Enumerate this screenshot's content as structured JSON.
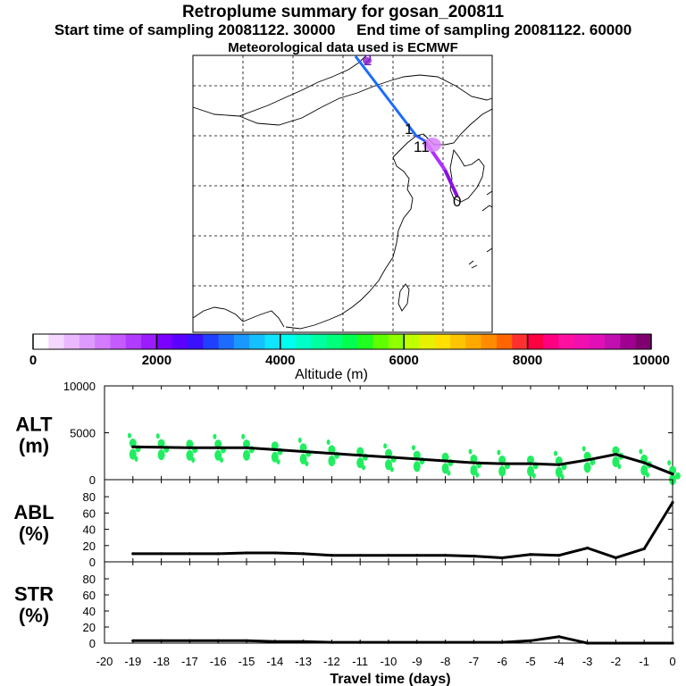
{
  "header": {
    "title": "Retroplume summary for gosan_200811",
    "start_label": "Start time of sampling 20081122. 30000",
    "end_label": "End time of sampling 20081122. 60000",
    "met_label": "Meteorological data used is ECMWF"
  },
  "colorbar": {
    "label": "Altitude (m)",
    "ticks": [
      "0",
      "2000",
      "4000",
      "6000",
      "8000",
      "10000"
    ],
    "range": [
      0,
      10000
    ],
    "colors": [
      "#ffffff",
      "#f4d6ff",
      "#eab8ff",
      "#df9aff",
      "#d37bff",
      "#c45bff",
      "#b13cff",
      "#9a1cff",
      "#7a00ff",
      "#5b00ff",
      "#3b10ff",
      "#2040ff",
      "#1e6cff",
      "#1a98ff",
      "#16c0ff",
      "#10e4ff",
      "#00ffee",
      "#00ffc8",
      "#00ffa0",
      "#00ff7a",
      "#00ff50",
      "#20ff20",
      "#60ff00",
      "#90ff00",
      "#c0ff00",
      "#e6f000",
      "#ffe000",
      "#ffc400",
      "#ffa800",
      "#ff8c00",
      "#ff6600",
      "#ff3030",
      "#ff0040",
      "#ff0080",
      "#ff10a0",
      "#f010b0",
      "#e010b8",
      "#c010b0",
      "#a00090",
      "#800070"
    ]
  },
  "map": {
    "labels": [
      {
        "text": "2",
        "color": "#7a1fd0"
      },
      {
        "text": "1",
        "color": "#000000"
      },
      {
        "text": "11",
        "color": "#000000"
      },
      {
        "text": "0",
        "color": "#000000"
      }
    ]
  },
  "chart_data": [
    {
      "type": "line",
      "name": "ALT",
      "ylabel": "ALT\n(m)",
      "ylabel_top": "ALT",
      "ylabel_unit": "(m)",
      "ylim": [
        0,
        10000
      ],
      "yticks": [
        "10000",
        "5000",
        "0"
      ],
      "x": [
        -19,
        -18,
        -17,
        -16,
        -15,
        -14,
        -13,
        -12,
        -11,
        -10,
        -9,
        -8,
        -7,
        -6,
        -5,
        -4,
        -3,
        -2,
        -1,
        0
      ],
      "values": [
        3500,
        3450,
        3400,
        3400,
        3400,
        3200,
        3000,
        2800,
        2600,
        2400,
        2200,
        2000,
        1800,
        1700,
        1700,
        1600,
        2100,
        2700,
        1800,
        600
      ],
      "scatter_color": "#20ee60"
    },
    {
      "type": "line",
      "name": "ABL",
      "ylabel_top": "ABL",
      "ylabel_unit": "(%)",
      "ylim": [
        0,
        90
      ],
      "yticks": [
        "80",
        "60",
        "40",
        "20",
        "0"
      ],
      "x": [
        -19,
        -18,
        -17,
        -16,
        -15,
        -14,
        -13,
        -12,
        -11,
        -10,
        -9,
        -8,
        -7,
        -6,
        -5,
        -4,
        -3,
        -2,
        -1,
        0
      ],
      "values": [
        10,
        10,
        10,
        10,
        11,
        11,
        10,
        8,
        8,
        8,
        8,
        8,
        7,
        5,
        9,
        8,
        17,
        5,
        16,
        73
      ]
    },
    {
      "type": "line",
      "name": "STR",
      "ylabel_top": "STR",
      "ylabel_unit": "(%)",
      "ylim": [
        0,
        90
      ],
      "yticks": [
        "80",
        "60",
        "40",
        "20",
        "0"
      ],
      "x": [
        -19,
        -18,
        -17,
        -16,
        -15,
        -14,
        -13,
        -12,
        -11,
        -10,
        -9,
        -8,
        -7,
        -6,
        -5,
        -4,
        -3,
        -2,
        -1,
        0
      ],
      "values": [
        3,
        3,
        3,
        3,
        3,
        2,
        2,
        1,
        1,
        1,
        1,
        1,
        1,
        1,
        3,
        8,
        0,
        0,
        0,
        0
      ]
    }
  ],
  "xaxis": {
    "label": "Travel time (days)",
    "ticks": [
      "-20",
      "-19",
      "-18",
      "-17",
      "-16",
      "-15",
      "-14",
      "-13",
      "-12",
      "-11",
      "-10",
      "-9",
      "-8",
      "-7",
      "-6",
      "-5",
      "-4",
      "-3",
      "-2",
      "-1",
      "0"
    ]
  }
}
